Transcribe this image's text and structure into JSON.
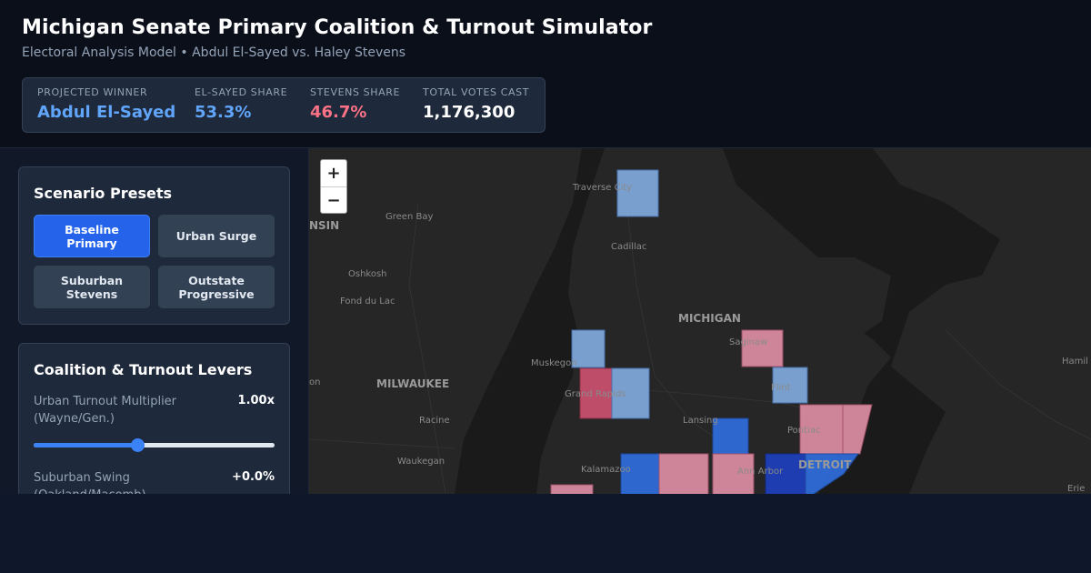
{
  "header": {
    "title": "Michigan Senate Primary Coalition & Turnout Simulator",
    "subtitle": "Electoral Analysis Model • Abdul El-Sayed vs. Haley Stevens"
  },
  "stats": {
    "winner_label": "PROJECTED WINNER",
    "winner_value": "Abdul El-Sayed",
    "elsayed_label": "EL-SAYED SHARE",
    "elsayed_value": "53.3%",
    "stevens_label": "STEVENS SHARE",
    "stevens_value": "46.7%",
    "total_label": "TOTAL VOTES CAST",
    "total_value": "1,176,300"
  },
  "presets": {
    "title": "Scenario Presets",
    "items": [
      {
        "label": "Baseline Primary",
        "active": true
      },
      {
        "label": "Urban Surge",
        "active": false
      },
      {
        "label": "Suburban Stevens",
        "active": false
      },
      {
        "label": "Outstate Progressive",
        "active": false
      }
    ]
  },
  "levers": {
    "title": "Coalition & Turnout Levers",
    "urban_label": "Urban Turnout Multiplier (Wayne/Gen.)",
    "urban_value": "1.00x",
    "urban_slider_fraction": 0.43,
    "suburban_label": "Suburban Swing (Oakland/Macomb)",
    "suburban_value": "+0.0%"
  },
  "map": {
    "zoom_in": "+",
    "zoom_out": "−",
    "labels": {
      "traverse_city": "Traverse City",
      "green_bay": "Green Bay",
      "cadillac": "Cadillac",
      "oshkosh": "Oshkosh",
      "fond_du_lac": "Fond du Lac",
      "michigan": "MICHIGAN",
      "saginaw": "Saginaw",
      "muskegon": "Muskegon",
      "milwaukee": "MILWAUKEE",
      "grand_rapids": "Grand Rapids",
      "flint": "Flint",
      "racine": "Racine",
      "lansing": "Lansing",
      "pontiac": "Pontiac",
      "waukegan": "Waukegan",
      "kalamazoo": "Kalamazoo",
      "ann_arbor": "Ann Arbor",
      "detroit": "DETROIT",
      "wisconsin": "NSIN",
      "hamilton": "Hamil",
      "erie": "Erie",
      "sheboygan": "on"
    },
    "colors": {
      "elsayed_light": "#7ea6d8",
      "elsayed_strong": "#2f6bd6",
      "elsayed_deep": "#1d3fb8",
      "stevens_light": "#d98ba0",
      "stevens_strong": "#c7506d"
    }
  }
}
